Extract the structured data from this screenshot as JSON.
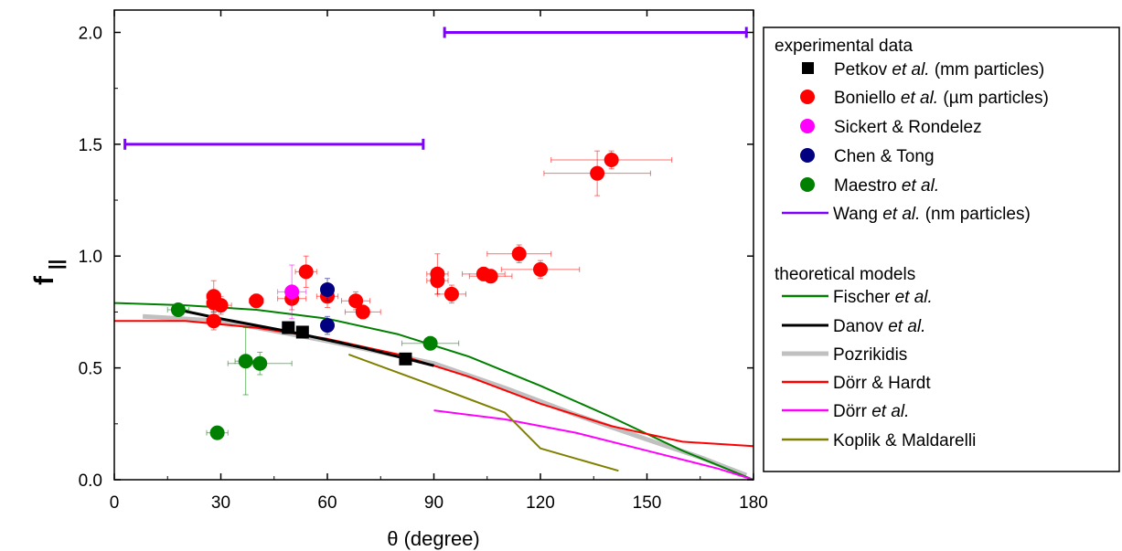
{
  "chart_data": {
    "type": "scatter",
    "xlabel": "θ (degree)",
    "ylabel": "f",
    "ylabel_sub": "||",
    "xlim": [
      0,
      180
    ],
    "ylim": [
      0,
      2.1
    ],
    "xticks": [
      "0",
      "30",
      "60",
      "90",
      "120",
      "150",
      "180"
    ],
    "yticks": [
      "0.0",
      "0.5",
      "1.0",
      "1.5",
      "2.0"
    ],
    "grid": false,
    "legend_position": "right",
    "legend": {
      "experimental_title": "experimental data",
      "theoretical_title": "theoretical models",
      "entries": [
        {
          "key": "petkov",
          "parts": [
            {
              "t": "Petkov "
            },
            {
              "t": "et al.",
              "i": true
            },
            {
              "t": " (mm particles)"
            }
          ],
          "color": "#000000",
          "marker": "square"
        },
        {
          "key": "boniello",
          "parts": [
            {
              "t": "Boniello "
            },
            {
              "t": "et al.",
              "i": true
            },
            {
              "t": " (µm particles)"
            }
          ],
          "color": "#ff0000",
          "marker": "circle"
        },
        {
          "key": "sickert",
          "parts": [
            {
              "t": "Sickert & Rondelez"
            }
          ],
          "color": "#ff00ff",
          "marker": "circle"
        },
        {
          "key": "chen",
          "parts": [
            {
              "t": "Chen & Tong"
            }
          ],
          "color": "#000080",
          "marker": "circle"
        },
        {
          "key": "maestro",
          "parts": [
            {
              "t": "Maestro "
            },
            {
              "t": "et al.",
              "i": true
            }
          ],
          "color": "#008000",
          "marker": "circle"
        },
        {
          "key": "wang",
          "parts": [
            {
              "t": "Wang "
            },
            {
              "t": "et al.",
              "i": true
            },
            {
              "t": " (nm particles)"
            }
          ],
          "color": "#7f00ff",
          "marker": "line"
        },
        {
          "key": "fischer",
          "parts": [
            {
              "t": "Fischer "
            },
            {
              "t": "et al.",
              "i": true
            }
          ],
          "color": "#008000",
          "marker": "line"
        },
        {
          "key": "danov",
          "parts": [
            {
              "t": "Danov "
            },
            {
              "t": "et al.",
              "i": true
            }
          ],
          "color": "#000000",
          "marker": "line"
        },
        {
          "key": "pozrikidis",
          "parts": [
            {
              "t": "Pozrikidis"
            }
          ],
          "color": "#c0c0c0",
          "marker": "line"
        },
        {
          "key": "dorr_hardt",
          "parts": [
            {
              "t": "Dörr & Hardt"
            }
          ],
          "color": "#ff0000",
          "marker": "line"
        },
        {
          "key": "dorr",
          "parts": [
            {
              "t": "Dörr "
            },
            {
              "t": "et al.",
              "i": true
            }
          ],
          "color": "#ff00ff",
          "marker": "line"
        },
        {
          "key": "koplik",
          "parts": [
            {
              "t": "Koplik & Maldarelli"
            }
          ],
          "color": "#808000",
          "marker": "line"
        }
      ]
    },
    "intervals": [
      {
        "series": "wang",
        "x": [
          3,
          87
        ],
        "y": 1.5
      },
      {
        "series": "wang",
        "x": [
          93,
          178
        ],
        "y": 2.0
      }
    ],
    "points": [
      {
        "series": "boniello",
        "data": [
          [
            28,
            0.82,
            2,
            0.07
          ],
          [
            28,
            0.79,
            2,
            0.04
          ],
          [
            28,
            0.71,
            2,
            0.04
          ],
          [
            30,
            0.78,
            3,
            0.04
          ],
          [
            40,
            0.8,
            2,
            0.03
          ],
          [
            50,
            0.81,
            4,
            0.05
          ],
          [
            54,
            0.93,
            3,
            0.07
          ],
          [
            60,
            0.82,
            3,
            0.05
          ],
          [
            68,
            0.8,
            4,
            0.04
          ],
          [
            70,
            0.75,
            5,
            0.03
          ],
          [
            91,
            0.92,
            3,
            0.09
          ],
          [
            91,
            0.89,
            3,
            0.06
          ],
          [
            95,
            0.83,
            4,
            0.04
          ],
          [
            104,
            0.92,
            6,
            0.03
          ],
          [
            106,
            0.91,
            6,
            0.03
          ],
          [
            114,
            1.01,
            9,
            0.04
          ],
          [
            120,
            0.94,
            11,
            0.04
          ],
          [
            136,
            1.37,
            15,
            0.1
          ],
          [
            140,
            1.43,
            17,
            0.04
          ]
        ]
      },
      {
        "series": "sickert",
        "data": [
          [
            50,
            0.84,
            4,
            0.12
          ]
        ]
      },
      {
        "series": "chen",
        "data": [
          [
            60,
            0.85,
            1,
            0.05
          ],
          [
            60,
            0.69,
            1,
            0.04
          ]
        ]
      },
      {
        "series": "maestro",
        "data": [
          [
            18,
            0.76,
            3,
            0.02
          ],
          [
            29,
            0.21,
            3,
            0.02
          ],
          [
            37,
            0.53,
            3,
            0.15
          ],
          [
            41,
            0.52,
            9,
            0.05
          ],
          [
            89,
            0.61,
            8,
            0.03
          ]
        ]
      },
      {
        "series": "petkov",
        "data": [
          [
            49,
            0.68,
            0,
            0
          ],
          [
            53,
            0.66,
            0,
            0
          ],
          [
            82,
            0.54,
            0,
            0
          ]
        ]
      }
    ],
    "curves": [
      {
        "series": "pozrikidis",
        "width": 5,
        "data": [
          [
            8,
            0.73
          ],
          [
            30,
            0.71
          ],
          [
            60,
            0.62
          ],
          [
            90,
            0.52
          ],
          [
            110,
            0.41
          ],
          [
            130,
            0.29
          ],
          [
            150,
            0.18
          ],
          [
            165,
            0.1
          ],
          [
            178,
            0.02
          ]
        ]
      },
      {
        "series": "fischer",
        "width": 2,
        "data": [
          [
            0,
            0.79
          ],
          [
            20,
            0.78
          ],
          [
            40,
            0.76
          ],
          [
            60,
            0.72
          ],
          [
            80,
            0.65
          ],
          [
            100,
            0.55
          ],
          [
            120,
            0.42
          ],
          [
            140,
            0.28
          ],
          [
            160,
            0.13
          ],
          [
            180,
            0.0
          ]
        ]
      },
      {
        "series": "dorr_hardt",
        "width": 2,
        "data": [
          [
            0,
            0.71
          ],
          [
            20,
            0.71
          ],
          [
            40,
            0.68
          ],
          [
            60,
            0.63
          ],
          [
            80,
            0.56
          ],
          [
            100,
            0.46
          ],
          [
            120,
            0.34
          ],
          [
            140,
            0.24
          ],
          [
            160,
            0.17
          ],
          [
            180,
            0.15
          ]
        ]
      },
      {
        "series": "danov",
        "width": 3,
        "data": [
          [
            18,
            0.76
          ],
          [
            30,
            0.72
          ],
          [
            50,
            0.66
          ],
          [
            70,
            0.59
          ],
          [
            90,
            0.51
          ]
        ]
      },
      {
        "series": "dorr",
        "width": 2,
        "data": [
          [
            90,
            0.31
          ],
          [
            110,
            0.27
          ],
          [
            130,
            0.21
          ],
          [
            150,
            0.13
          ],
          [
            170,
            0.05
          ],
          [
            180,
            0.0
          ]
        ]
      },
      {
        "series": "koplik",
        "width": 2,
        "data": [
          [
            66,
            0.56
          ],
          [
            90,
            0.42
          ],
          [
            110,
            0.3
          ],
          [
            120,
            0.14
          ],
          [
            142,
            0.04
          ]
        ]
      }
    ]
  }
}
